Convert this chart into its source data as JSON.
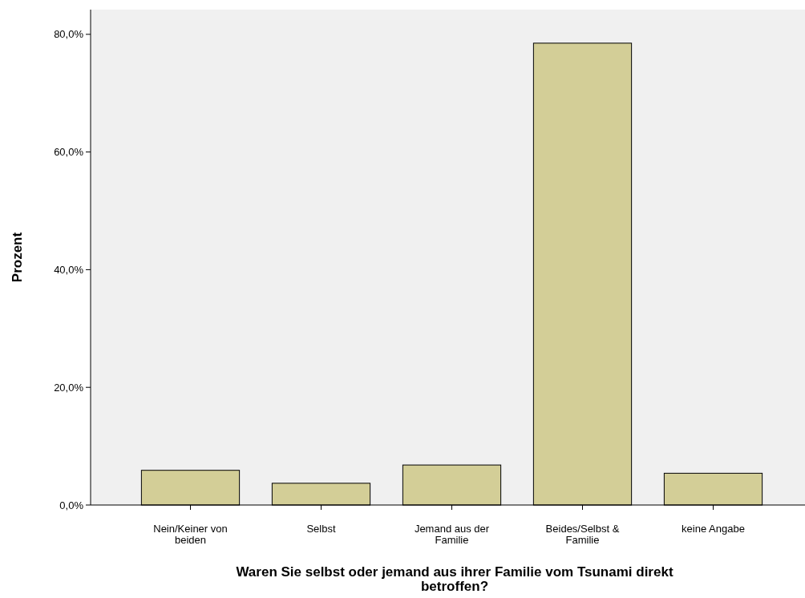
{
  "chart_data": {
    "type": "bar",
    "xlabel": "Waren Sie selbst oder jemand aus ihrer Familie vom Tsunami direkt betroffen?",
    "ylabel": "Prozent",
    "categories": [
      "Nein/Keiner von beiden",
      "Selbst",
      "Jemand aus der Familie",
      "Beides/Selbst & Familie",
      "keine Angabe"
    ],
    "values": [
      5.9,
      3.7,
      6.8,
      78.5,
      5.4
    ],
    "color": "#d3ce97",
    "ylim": [
      0,
      84.2
    ],
    "yticks": [
      {
        "value": 0,
        "label": "0,0%"
      },
      {
        "value": 20,
        "label": "20,0%"
      },
      {
        "value": 40,
        "label": "40,0%"
      },
      {
        "value": 60,
        "label": "60,0%"
      },
      {
        "value": 80,
        "label": "80,0%"
      }
    ],
    "grid": false
  }
}
